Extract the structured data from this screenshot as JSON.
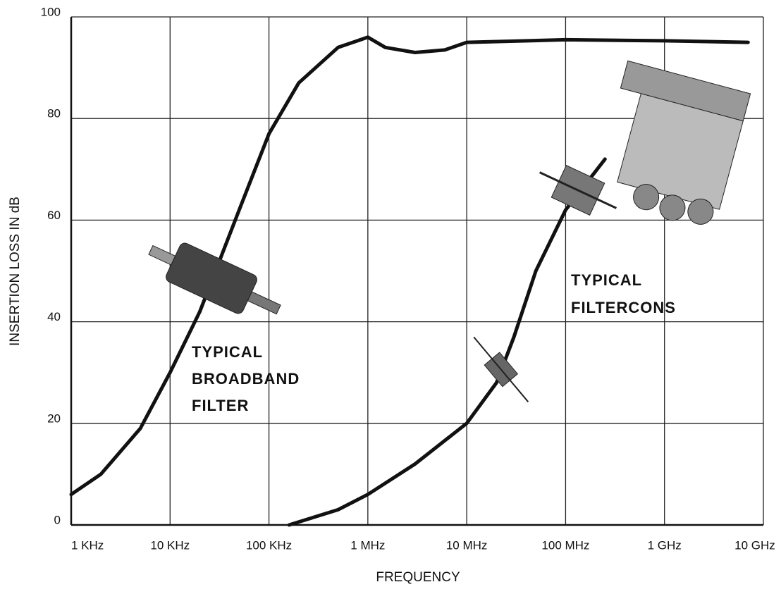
{
  "chart_data": {
    "type": "line",
    "y_label": "INSERTION LOSS IN dB",
    "x_label": "FREQUENCY",
    "xscale": "log",
    "xlim": [
      1000,
      10000000000
    ],
    "xticks": [
      {
        "value": 1000,
        "label": "1 KHz"
      },
      {
        "value": 10000,
        "label": "10 KHz"
      },
      {
        "value": 100000,
        "label": "100 KHz"
      },
      {
        "value": 1000000,
        "label": "1 MHz"
      },
      {
        "value": 10000000,
        "label": "10 MHz"
      },
      {
        "value": 100000000,
        "label": "100 MHz"
      },
      {
        "value": 1000000000,
        "label": "1 GHz"
      },
      {
        "value": 10000000000,
        "label": "10 GHz"
      }
    ],
    "ylim": [
      0,
      100
    ],
    "yticks": [
      0,
      20,
      40,
      60,
      80,
      100
    ],
    "grid": true,
    "series": [
      {
        "color": "#111111",
        "x": [
          1000,
          2000,
          5000,
          10000,
          20000,
          50000,
          100000,
          200000,
          500000,
          1000000,
          1500000,
          3000000,
          6000000,
          10000000,
          100000000,
          1000000000,
          7000000000
        ],
        "values": [
          6,
          10,
          19,
          30,
          42,
          62,
          77,
          87,
          94,
          96,
          94,
          93,
          93.5,
          95,
          95.5,
          95.3,
          95
        ]
      },
      {
        "color": "#111111",
        "x": [
          160000,
          500000,
          1000000,
          3000000,
          10000000,
          20000000,
          30000000,
          50000000,
          100000000,
          250000000
        ],
        "values": [
          0,
          3,
          6,
          12,
          20,
          28,
          37,
          50,
          62,
          72
        ]
      }
    ],
    "annotations": [
      {
        "lines": [
          "TYPICAL",
          "BROADBAND",
          "FILTER"
        ]
      },
      {
        "lines": [
          "TYPICAL",
          "FILTERCONS"
        ]
      }
    ]
  }
}
